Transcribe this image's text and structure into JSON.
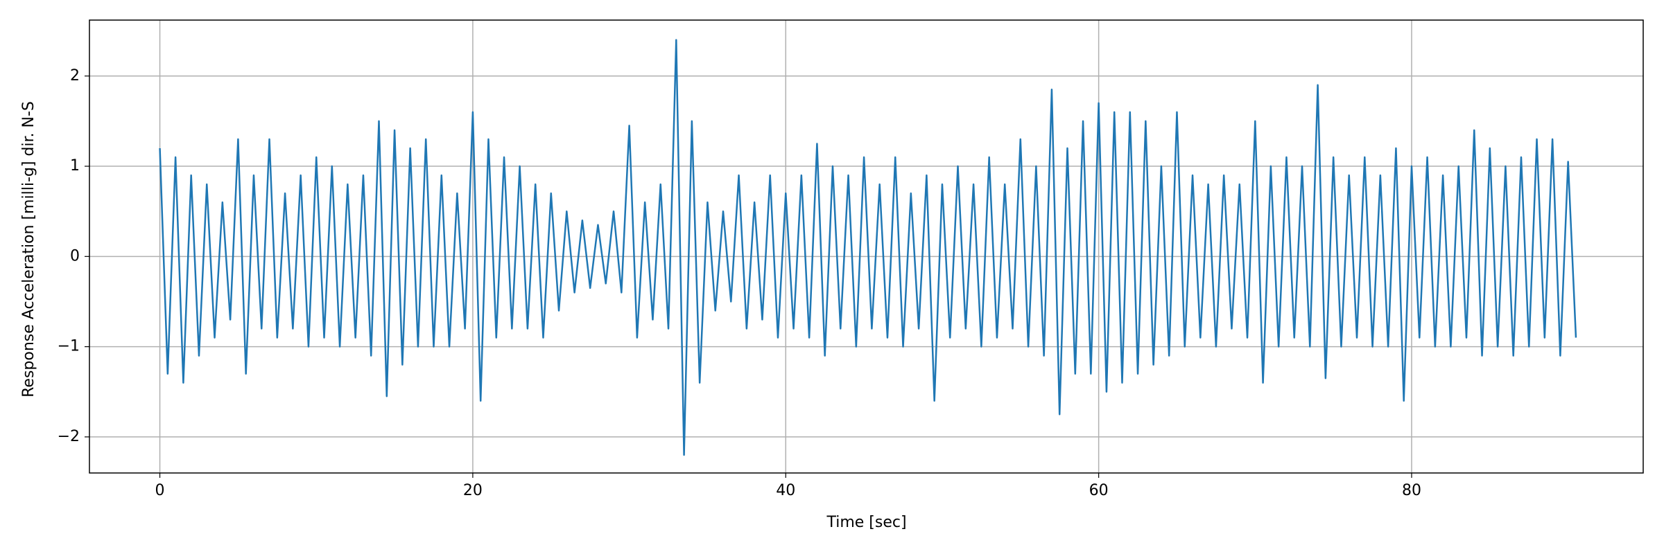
{
  "chart_data": {
    "type": "line",
    "x_label": "Time [sec]",
    "y_label": "Response Acceleration [milli-g] dir. N-S",
    "color": "#1f77b4",
    "grid": true,
    "xlim": [
      -4.5,
      94.8
    ],
    "ylim": [
      -2.4,
      2.62
    ],
    "xticks": [
      0,
      20,
      40,
      60,
      80
    ],
    "yticks": [
      {
        "value": -2,
        "label": "−2"
      },
      {
        "value": -1,
        "label": "−1"
      },
      0,
      1,
      2
    ],
    "x": [
      0,
      0.5,
      1,
      1.5,
      2,
      2.5,
      3,
      3.5,
      4,
      4.5,
      5,
      5.5,
      6,
      6.5,
      7,
      7.5,
      8,
      8.5,
      9,
      9.5,
      10,
      10.5,
      11,
      11.5,
      12,
      12.5,
      13,
      13.5,
      14,
      14.5,
      15,
      15.5,
      16,
      16.5,
      17,
      17.5,
      18,
      18.5,
      19,
      19.5,
      20,
      20.5,
      21,
      21.5,
      22,
      22.5,
      23,
      23.5,
      24,
      24.5,
      25,
      25.5,
      26,
      26.5,
      27,
      27.5,
      28,
      28.5,
      29,
      29.5,
      30,
      30.5,
      31,
      31.5,
      32,
      32.5,
      33,
      33.5,
      34,
      34.5,
      35,
      35.5,
      36,
      36.5,
      37,
      37.5,
      38,
      38.5,
      39,
      39.5,
      40,
      40.5,
      41,
      41.5,
      42,
      42.5,
      43,
      43.5,
      44,
      44.5,
      45,
      45.5,
      46,
      46.5,
      47,
      47.5,
      48,
      48.5,
      49,
      49.5,
      50,
      50.5,
      51,
      51.5,
      52,
      52.5,
      53,
      53.5,
      54,
      54.5,
      55,
      55.5,
      56,
      56.5,
      57,
      57.5,
      58,
      58.5,
      59,
      59.5,
      60,
      60.5,
      61,
      61.5,
      62,
      62.5,
      63,
      63.5,
      64,
      64.5,
      65,
      65.5,
      66,
      66.5,
      67,
      67.5,
      68,
      68.5,
      69,
      69.5,
      70,
      70.5,
      71,
      71.5,
      72,
      72.5,
      73,
      73.5,
      74,
      74.5,
      75,
      75.5,
      76,
      76.5,
      77,
      77.5,
      78,
      78.5,
      79,
      79.5,
      80,
      80.5,
      81,
      81.5,
      82,
      82.5,
      83,
      83.5,
      84,
      84.5,
      85,
      85.5,
      86,
      86.5,
      87,
      87.5,
      88,
      88.5,
      89,
      89.5,
      90,
      90.5
    ],
    "values": [
      1.2,
      -1.3,
      1.1,
      -1.4,
      0.9,
      -1.1,
      0.8,
      -0.9,
      0.6,
      -0.7,
      1.3,
      -1.3,
      0.9,
      -0.8,
      1.3,
      -0.9,
      0.7,
      -0.8,
      0.9,
      -1.0,
      1.1,
      -0.9,
      1.0,
      -1.0,
      0.8,
      -0.9,
      0.9,
      -1.1,
      1.5,
      -1.55,
      1.4,
      -1.2,
      1.2,
      -1.0,
      1.3,
      -1.0,
      0.9,
      -1.0,
      0.7,
      -0.8,
      1.6,
      -1.6,
      1.3,
      -0.9,
      1.1,
      -0.8,
      1.0,
      -0.8,
      0.8,
      -0.9,
      0.7,
      -0.6,
      0.5,
      -0.4,
      0.4,
      -0.35,
      0.35,
      -0.3,
      0.5,
      -0.4,
      1.45,
      -0.9,
      0.6,
      -0.7,
      0.8,
      -0.8,
      2.4,
      -2.2,
      1.5,
      -1.4,
      0.6,
      -0.6,
      0.5,
      -0.5,
      0.9,
      -0.8,
      0.6,
      -0.7,
      0.9,
      -0.9,
      0.7,
      -0.8,
      0.9,
      -0.9,
      1.25,
      -1.1,
      1.0,
      -0.8,
      0.9,
      -1.0,
      1.1,
      -0.8,
      0.8,
      -0.9,
      1.1,
      -1.0,
      0.7,
      -0.8,
      0.9,
      -1.6,
      0.8,
      -0.9,
      1.0,
      -0.8,
      0.8,
      -1.0,
      1.1,
      -0.9,
      0.8,
      -0.8,
      1.3,
      -1.0,
      1.0,
      -1.1,
      1.85,
      -1.75,
      1.2,
      -1.3,
      1.5,
      -1.3,
      1.7,
      -1.5,
      1.6,
      -1.4,
      1.6,
      -1.3,
      1.5,
      -1.2,
      1.0,
      -1.1,
      1.6,
      -1.0,
      0.9,
      -0.9,
      0.8,
      -1.0,
      0.9,
      -0.8,
      0.8,
      -0.9,
      1.5,
      -1.4,
      1.0,
      -1.0,
      1.1,
      -0.9,
      1.0,
      -1.0,
      1.9,
      -1.35,
      1.1,
      -1.0,
      0.9,
      -0.9,
      1.1,
      -1.0,
      0.9,
      -1.0,
      1.2,
      -1.6,
      1.0,
      -0.9,
      1.1,
      -1.0,
      0.9,
      -1.0,
      1.0,
      -0.9,
      1.4,
      -1.1,
      1.2,
      -1.0,
      1.0,
      -1.1,
      1.1,
      -1.0,
      1.3,
      -0.9,
      1.3,
      -1.1,
      1.05,
      -0.9
    ]
  }
}
